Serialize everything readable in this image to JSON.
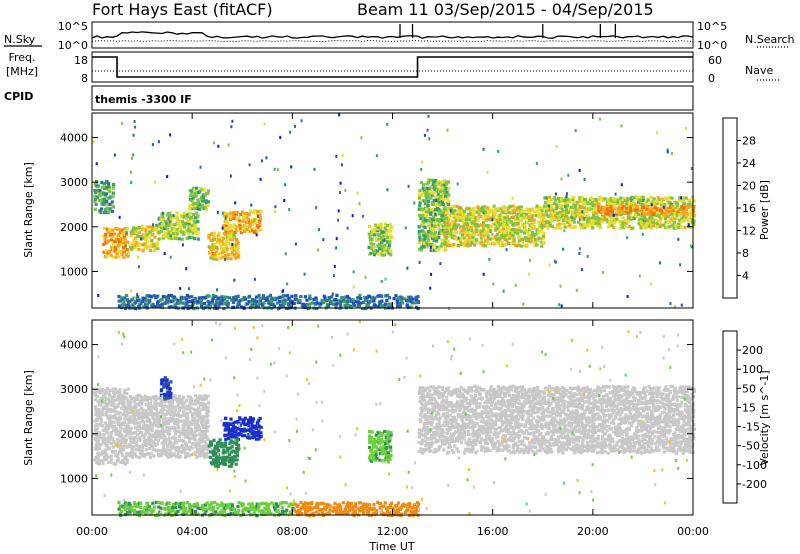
{
  "header": {
    "station": "Fort Hays East (fitACF)",
    "beam_dates": "Beam 11  03/Sep/2015 - 04/Sep/2015"
  },
  "noise_panel": {
    "left_label": "N.Sky",
    "left_ticks": [
      "10^5",
      "10^0"
    ],
    "right_label": "N.Search",
    "right_ticks": [
      "10^5",
      "10^0"
    ]
  },
  "freq_panel": {
    "label_line1": "Freq.",
    "label_line2": "[MHz]",
    "left_ticks": [
      "18",
      "8"
    ],
    "right_label": "Nave",
    "right_ticks": [
      "60",
      "0"
    ],
    "segments": [
      {
        "start_h": 0,
        "end_h": 1.0,
        "freq": 18
      },
      {
        "start_h": 1.0,
        "end_h": 13.0,
        "freq": 10
      },
      {
        "start_h": 13.0,
        "end_h": 24,
        "freq": 18
      }
    ]
  },
  "cpid": {
    "label": "CPID",
    "mode": "themis -3300 IF"
  },
  "chart_data": [
    {
      "type": "heatmap",
      "name": "power",
      "ylabel": "Slant Range [km]",
      "y_ticks": [
        "1000",
        "2000",
        "3000",
        "4000"
      ],
      "ylim": [
        180,
        4550
      ],
      "xlim": [
        0,
        24
      ],
      "colorbar": {
        "label": "Power [dB]",
        "ticks": [
          "4",
          "8",
          "12",
          "16",
          "20",
          "24",
          "28"
        ],
        "range": [
          0,
          32
        ],
        "colors": [
          "#0016ff",
          "#1d4bc6",
          "#2f6e96",
          "#3b9b6e",
          "#7dc43f",
          "#e6dc2e",
          "#f9a21e",
          "#f46f15",
          "#ef2a14"
        ]
      },
      "regions": [
        {
          "t0": 0.05,
          "t1": 0.8,
          "r0": 2350,
          "r1": 3050,
          "val": 13
        },
        {
          "t0": 0.4,
          "t1": 1.4,
          "r0": 1350,
          "r1": 2000,
          "val": 23
        },
        {
          "t0": 1.4,
          "t1": 2.6,
          "r0": 1500,
          "r1": 2050,
          "val": 20
        },
        {
          "t0": 2.6,
          "t1": 4.2,
          "r0": 1750,
          "r1": 2350,
          "val": 17
        },
        {
          "t0": 3.8,
          "t1": 4.6,
          "r0": 2400,
          "r1": 2900,
          "val": 16
        },
        {
          "t0": 4.6,
          "t1": 5.8,
          "r0": 1300,
          "r1": 1900,
          "val": 21
        },
        {
          "t0": 5.2,
          "t1": 6.7,
          "r0": 1900,
          "r1": 2400,
          "val": 22
        },
        {
          "t0": 1.0,
          "t1": 13.0,
          "r0": 200,
          "r1": 500,
          "val": 9
        },
        {
          "t0": 11.0,
          "t1": 11.9,
          "r0": 1400,
          "r1": 2100,
          "val": 17
        },
        {
          "t0": 13.0,
          "t1": 14.2,
          "r0": 1500,
          "r1": 3100,
          "val": 16
        },
        {
          "t0": 14.0,
          "t1": 18.0,
          "r0": 1600,
          "r1": 2500,
          "val": 19
        },
        {
          "t0": 18.0,
          "t1": 24.0,
          "r0": 2000,
          "r1": 2700,
          "val": 18
        },
        {
          "t0": 20.0,
          "t1": 24.0,
          "r0": 2300,
          "r1": 2500,
          "val": 24
        }
      ]
    },
    {
      "type": "heatmap",
      "name": "velocity",
      "ylabel": "Slant Range [km]",
      "y_ticks": [
        "1000",
        "2000",
        "3000",
        "4000"
      ],
      "ylim": [
        180,
        4550
      ],
      "xlim": [
        0,
        24
      ],
      "colorbar": {
        "label": "Velocity [m s^-1]",
        "ticks": [
          "200",
          "100",
          "50",
          "15",
          "-15",
          "-50",
          "-100",
          "-200"
        ],
        "colors": [
          "#1b2fc9",
          "#2c56a3",
          "#2f8f57",
          "#6ccf3c",
          "#c8c8c8",
          "#f2c418",
          "#f08a10",
          "#ee5310",
          "#e81b10"
        ]
      },
      "regions": [
        {
          "t0": 0.05,
          "t1": 1.4,
          "r0": 1350,
          "r1": 3050,
          "val": 0
        },
        {
          "t0": 1.4,
          "t1": 4.6,
          "r0": 1500,
          "r1": 2900,
          "val": 0
        },
        {
          "t0": 2.7,
          "t1": 3.1,
          "r0": 2800,
          "r1": 3300,
          "val": 150
        },
        {
          "t0": 5.2,
          "t1": 6.7,
          "r0": 1900,
          "r1": 2400,
          "val": 180
        },
        {
          "t0": 4.6,
          "t1": 5.8,
          "r0": 1300,
          "r1": 1900,
          "val": 60
        },
        {
          "t0": 1.0,
          "t1": 8.0,
          "r0": 200,
          "r1": 500,
          "val": 30
        },
        {
          "t0": 8.0,
          "t1": 13.0,
          "r0": 200,
          "r1": 500,
          "val": -70
        },
        {
          "t0": 11.0,
          "t1": 11.9,
          "r0": 1400,
          "r1": 2100,
          "val": 30
        },
        {
          "t0": 13.0,
          "t1": 24.0,
          "r0": 1600,
          "r1": 3100,
          "val": 0
        }
      ]
    }
  ],
  "x_axis": {
    "ticks": [
      "00:00",
      "04:00",
      "08:00",
      "12:00",
      "16:00",
      "20:00",
      "00:00"
    ],
    "label": "Time UT"
  }
}
